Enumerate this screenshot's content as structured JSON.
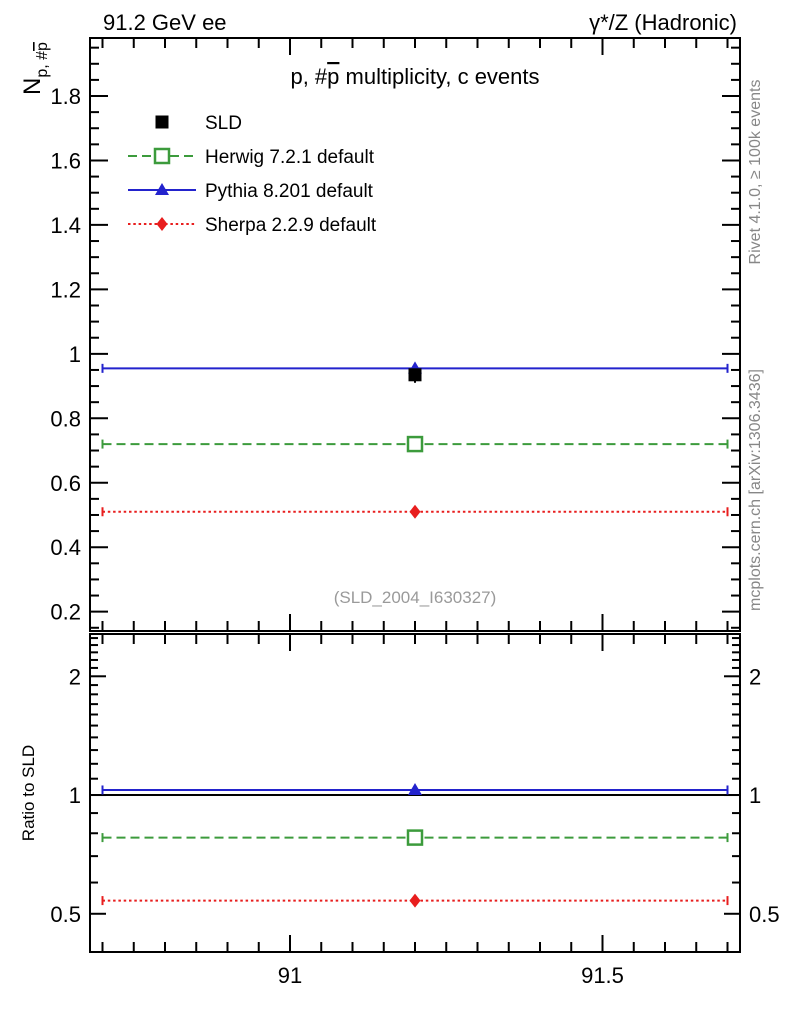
{
  "header": {
    "left": "91.2 GeV ee",
    "right": "γ*/Z (Hadronic)"
  },
  "side_captions": {
    "rivet": "Rivet 4.1.0, ≥ 100k events",
    "mcplots": "mcplots.cern.ch [arXiv:1306.3436]"
  },
  "main_panel": {
    "title": {
      "prefix": "p, #",
      "pbar": "p",
      "suffix": " multiplicity, c events"
    },
    "ylabel": {
      "main": "N",
      "sub_prefix": "p, #",
      "sub_pbar": "p"
    },
    "watermark": "(SLD_2004_I630327)"
  },
  "ratio_panel": {
    "ylabel": "Ratio to SLD"
  },
  "colors": {
    "data": "#000000",
    "herwig": "#3c9b3c",
    "pythia": "#2323cd",
    "sherpa": "#e81e1e",
    "frame": "#000000",
    "gray_text": "#878787"
  },
  "legend": [
    {
      "label": "SLD",
      "color": "#000000",
      "marker": "square-filled",
      "line": "none"
    },
    {
      "label": "Herwig 7.2.1 default",
      "color": "#3c9b3c",
      "marker": "square-open",
      "line": "dashed"
    },
    {
      "label": "Pythia 8.201 default",
      "color": "#2323cd",
      "marker": "triangle-filled",
      "line": "solid"
    },
    {
      "label": "Sherpa 2.2.9 default",
      "color": "#e81e1e",
      "marker": "diamond-filled",
      "line": "dotted"
    }
  ],
  "chart_data": [
    {
      "type": "line",
      "panel": "main",
      "title": "p, p̄ multiplicity, c events",
      "yscale": "linear",
      "xlim": [
        90.68,
        91.72
      ],
      "ylim": [
        0.14,
        1.98
      ],
      "xticks_major": [
        91,
        91.5
      ],
      "xtick_labels": [
        "91",
        "91.5"
      ],
      "xticks_minor_start": 90.7,
      "xticks_minor_step": 0.05,
      "xticks_minor_count": 21,
      "yticks_major": [
        0.2,
        0.4,
        0.6,
        0.8,
        1,
        1.2,
        1.4,
        1.6,
        1.8
      ],
      "ytick_labels": [
        "0.2",
        "0.4",
        "0.6",
        "0.8",
        "1",
        "1.2",
        "1.4",
        "1.6",
        "1.8"
      ],
      "yticks_minor_step": 0.05,
      "bin_x": [
        90.7,
        91.7
      ],
      "point_x": 91.2,
      "series": [
        {
          "name": "SLD",
          "y": 0.935,
          "color": "#000000",
          "marker": "square-filled",
          "line": "none",
          "role": "data"
        },
        {
          "name": "Herwig 7.2.1 default",
          "y": 0.72,
          "color": "#3c9b3c",
          "marker": "square-open",
          "line": "dashed",
          "role": "mc"
        },
        {
          "name": "Pythia 8.201 default",
          "y": 0.955,
          "color": "#2323cd",
          "marker": "triangle-filled",
          "line": "solid",
          "role": "mc"
        },
        {
          "name": "Sherpa 2.2.9 default",
          "y": 0.51,
          "color": "#e81e1e",
          "marker": "diamond-filled",
          "line": "dotted",
          "role": "mc"
        }
      ]
    },
    {
      "type": "line",
      "panel": "ratio",
      "ylabel": "Ratio to SLD",
      "yscale": "log",
      "xlim": [
        90.68,
        91.72
      ],
      "ylim": [
        0.4,
        2.56
      ],
      "yticks_major": [
        0.5,
        1,
        2
      ],
      "ytick_labels": [
        "0.5",
        "1",
        "2"
      ],
      "reference_line": 1,
      "bin_x": [
        90.7,
        91.7
      ],
      "point_x": 91.2,
      "series": [
        {
          "name": "Herwig 7.2.1 default",
          "y": 0.78,
          "color": "#3c9b3c",
          "marker": "square-open",
          "line": "dashed"
        },
        {
          "name": "Pythia 8.201 default",
          "y": 1.03,
          "color": "#2323cd",
          "marker": "triangle-filled",
          "line": "solid"
        },
        {
          "name": "Sherpa 2.2.9 default",
          "y": 0.54,
          "color": "#e81e1e",
          "marker": "diamond-filled",
          "line": "dotted"
        }
      ]
    }
  ]
}
